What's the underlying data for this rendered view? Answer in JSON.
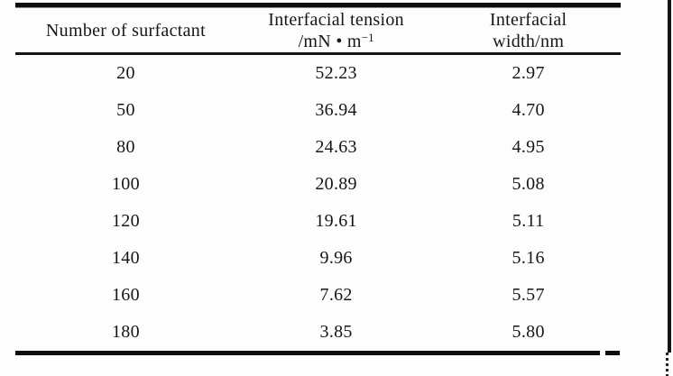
{
  "table": {
    "header": {
      "col1": "Number of surfactant",
      "col2_line1": "Interfacial tension",
      "col2_line2_base": "/mN • m",
      "col2_line2_sup": "−1",
      "col3_line1": "Interfacial",
      "col3_line2": "width/nm"
    },
    "rows": [
      [
        "20",
        "52.23",
        "2.97"
      ],
      [
        "50",
        "36.94",
        "4.70"
      ],
      [
        "80",
        "24.63",
        "4.95"
      ],
      [
        "100",
        "20.89",
        "5.08"
      ],
      [
        "120",
        "19.61",
        "5.11"
      ],
      [
        "140",
        "9.96",
        "5.16"
      ],
      [
        "160",
        "7.62",
        "5.57"
      ],
      [
        "180",
        "3.85",
        "5.80"
      ]
    ]
  },
  "colors": {
    "background": "#fdfdfd",
    "text": "#161616",
    "rule": "#0d0d0d"
  },
  "chart_data": {
    "type": "table",
    "columns": [
      "Number of surfactant",
      "Interfacial tension /mN·m⁻¹",
      "Interfacial width/nm"
    ],
    "rows": [
      [
        20,
        52.23,
        2.97
      ],
      [
        50,
        36.94,
        4.7
      ],
      [
        80,
        24.63,
        4.95
      ],
      [
        100,
        20.89,
        5.08
      ],
      [
        120,
        19.61,
        5.11
      ],
      [
        140,
        9.96,
        5.16
      ],
      [
        160,
        7.62,
        5.57
      ],
      [
        180,
        3.85,
        5.8
      ]
    ]
  }
}
